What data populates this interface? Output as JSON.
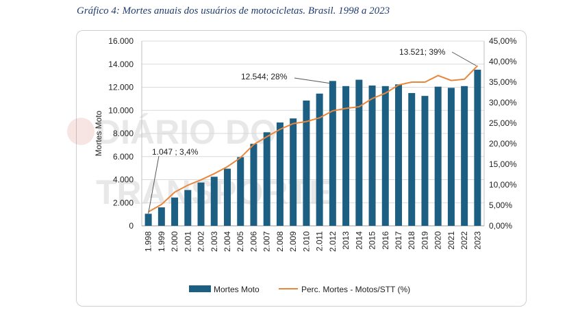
{
  "figure_title": "Gráfico 4: Mortes anuais dos usuários de motocicletas. Brasil. 1998 a 2023",
  "watermark": "DIÁRIO DO TRANSPORTE",
  "colors": {
    "bar": "#1d5f82",
    "line": "#e8873c",
    "title": "#1f3c6e",
    "grid": "#d9d9d9"
  },
  "chart_data": {
    "type": "bar",
    "categories": [
      "1.998",
      "1.999",
      "2.000",
      "2.001",
      "2.002",
      "2.003",
      "2.004",
      "2.005",
      "2.006",
      "2.007",
      "2.008",
      "2.009",
      "2.010",
      "2.011",
      "2.012",
      "2013",
      "2014",
      "2015",
      "2016",
      "2017",
      "2018",
      "2019",
      "2020",
      "2021",
      "2022",
      "2023"
    ],
    "series": [
      {
        "name": "Mortes Moto",
        "type": "bar",
        "axis": "left",
        "values": [
          1047,
          1600,
          2450,
          3100,
          3750,
          4250,
          4950,
          5950,
          7100,
          8100,
          8950,
          9300,
          10850,
          11450,
          12544,
          12100,
          12650,
          12150,
          12100,
          12250,
          11500,
          11250,
          12050,
          11950,
          12100,
          13521
        ]
      },
      {
        "name": "Perc. Mortes - Motos/STT (%)",
        "type": "line",
        "axis": "right",
        "values": [
          3.4,
          5.2,
          8.2,
          9.9,
          11.2,
          12.7,
          14.4,
          16.6,
          19.8,
          21.7,
          23.5,
          24.9,
          25.4,
          26.3,
          28.0,
          28.6,
          29.0,
          31.0,
          32.3,
          34.3,
          35.0,
          35.0,
          36.6,
          35.4,
          35.7,
          39.0
        ]
      }
    ],
    "ylabel": "Mortes Moto",
    "y_left": {
      "range": [
        0,
        16000
      ],
      "ticks": [
        "0",
        "2.000",
        "4.000",
        "6.000",
        "8.000",
        "10.000",
        "12.000",
        "14.000",
        "16.000"
      ]
    },
    "y_right": {
      "range": [
        0,
        45
      ],
      "ticks": [
        "0,00%",
        "5,00%",
        "10,00%",
        "15,00%",
        "20,00%",
        "25,00%",
        "30,00%",
        "35,00%",
        "40,00%",
        "45,00%"
      ]
    },
    "annotations": [
      {
        "text": "1.047 ; 3,4%",
        "category": "1.998"
      },
      {
        "text": "12.544; 28%",
        "category": "2.012"
      },
      {
        "text": "13.521; 39%",
        "category": "2023"
      }
    ],
    "grid": true,
    "legend": "bottom"
  }
}
